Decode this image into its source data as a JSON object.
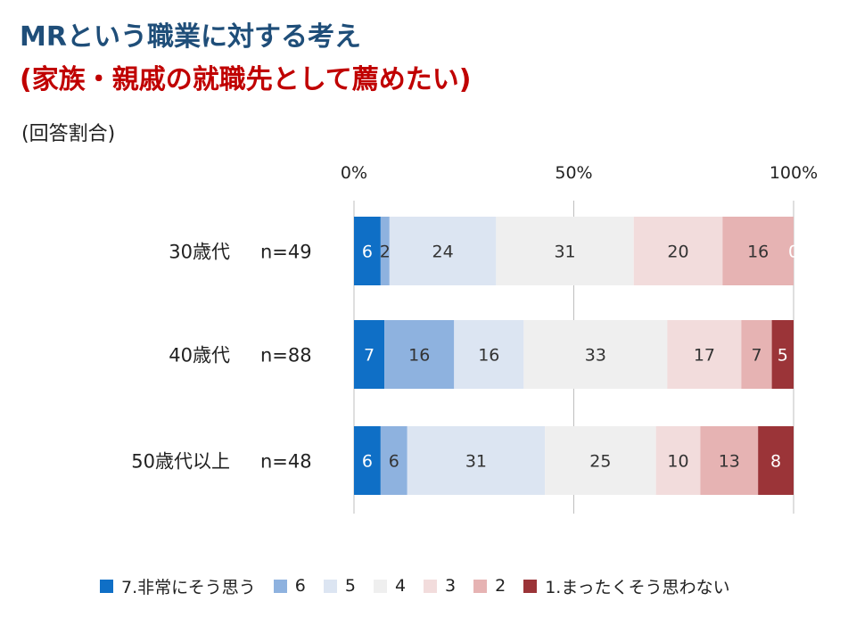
{
  "title": {
    "line1": "MRという職業に対する考え",
    "line2": "(家族・親戚の就職先として薦めたい)"
  },
  "unit_note": "(回答割合)",
  "chart_data": {
    "type": "bar",
    "orientation": "horizontal",
    "stacked": true,
    "percent_stacked": true,
    "xaxis_position": "top",
    "xticks": [
      "0%",
      "50%",
      "100%"
    ],
    "xlim": [
      0,
      100
    ],
    "grid": true,
    "legend_position": "bottom",
    "categories": [
      "30歳代",
      "40歳代",
      "50歳代以上"
    ],
    "sample_sizes": [
      "n=49",
      "n=88",
      "n=48"
    ],
    "series": [
      {
        "name": "7.非常にそう思う",
        "color": "#0f6fc6",
        "label_color": "#ffffff",
        "values": [
          6,
          7,
          6
        ]
      },
      {
        "name": "6",
        "color": "#8eb2df",
        "label_color": "#333333",
        "values": [
          2,
          16,
          6
        ]
      },
      {
        "name": "5",
        "color": "#dce5f2",
        "label_color": "#333333",
        "values": [
          24,
          16,
          31
        ]
      },
      {
        "name": "4",
        "color": "#efefef",
        "label_color": "#333333",
        "values": [
          31,
          33,
          25
        ]
      },
      {
        "name": "3",
        "color": "#f2dcdc",
        "label_color": "#333333",
        "values": [
          20,
          17,
          10
        ]
      },
      {
        "name": "2",
        "color": "#e6b3b3",
        "label_color": "#333333",
        "values": [
          16,
          7,
          13
        ]
      },
      {
        "name": "1.まったくそう思わない",
        "color": "#9b3438",
        "label_color": "#ffffff",
        "values": [
          0,
          5,
          8
        ]
      }
    ]
  }
}
